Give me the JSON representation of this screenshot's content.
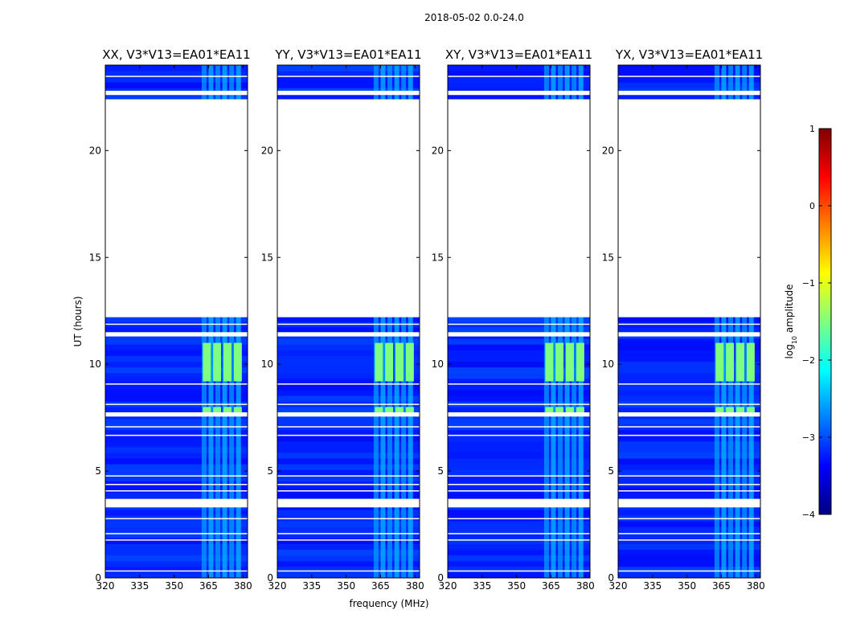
{
  "figure_title": "2018-05-02 0.0-24.0",
  "ylabel": "UT (hours)",
  "xlabel": "frequency (MHz)",
  "colorbar": {
    "label_prefix": "log",
    "label_sub": "10",
    "label_suffix": " amplitude",
    "range": [
      -4,
      1
    ],
    "ticks": [
      1,
      0,
      -1,
      -2,
      -3,
      -4
    ],
    "tick_labels": [
      "1",
      "0",
      "−1",
      "−2",
      "−3",
      "−4"
    ],
    "colors": [
      "#00007f",
      "#0000ff",
      "#007fff",
      "#00ffff",
      "#7fff7f",
      "#ffff00",
      "#ff7f00",
      "#ff0000",
      "#7f0000"
    ]
  },
  "chart_data": [
    {
      "type": "heatmap",
      "title": "XX, V3*V13=EA01*EA11",
      "xlim": [
        320,
        382
      ],
      "ylim": [
        0,
        24
      ],
      "xticks": [
        320,
        335,
        350,
        365,
        380
      ],
      "yticks": [
        0,
        5,
        10,
        15,
        20
      ],
      "background_log_amplitude": -3.2,
      "flagged_hours": [
        [
          12.2,
          22.4
        ],
        [
          22.6,
          22.8
        ],
        [
          7.55,
          7.75
        ],
        [
          3.3,
          3.7
        ],
        [
          11.3,
          11.5
        ]
      ],
      "rfi_band_mhz": [
        362,
        380
      ],
      "strong_rfi_hours": [
        [
          9.2,
          11.0
        ],
        [
          7.6,
          8.0
        ]
      ],
      "strong_rfi_log_amplitude": -1.5
    },
    {
      "type": "heatmap",
      "title": "YY, V3*V13=EA01*EA11",
      "xlim": [
        320,
        382
      ],
      "ylim": [
        0,
        24
      ],
      "xticks": [
        320,
        335,
        350,
        365,
        380
      ],
      "yticks": [
        0,
        5,
        10,
        15,
        20
      ],
      "background_log_amplitude": -3.2,
      "flagged_hours": [
        [
          12.2,
          22.4
        ],
        [
          22.6,
          22.8
        ],
        [
          7.55,
          7.75
        ],
        [
          3.3,
          3.7
        ],
        [
          11.3,
          11.5
        ]
      ],
      "rfi_band_mhz": [
        362,
        380
      ],
      "strong_rfi_hours": [
        [
          9.2,
          11.0
        ],
        [
          7.6,
          8.0
        ]
      ],
      "strong_rfi_log_amplitude": -1.5
    },
    {
      "type": "heatmap",
      "title": "XY, V3*V13=EA01*EA11",
      "xlim": [
        320,
        382
      ],
      "ylim": [
        0,
        24
      ],
      "xticks": [
        320,
        335,
        350,
        365,
        380
      ],
      "yticks": [
        0,
        5,
        10,
        15,
        20
      ],
      "background_log_amplitude": -3.2,
      "flagged_hours": [
        [
          12.2,
          22.4
        ],
        [
          22.6,
          22.8
        ],
        [
          7.55,
          7.75
        ],
        [
          3.3,
          3.7
        ],
        [
          11.3,
          11.5
        ]
      ],
      "rfi_band_mhz": [
        362,
        380
      ],
      "strong_rfi_hours": [
        [
          9.2,
          11.0
        ],
        [
          7.6,
          8.0
        ]
      ],
      "strong_rfi_log_amplitude": -1.5
    },
    {
      "type": "heatmap",
      "title": "YX, V3*V13=EA01*EA11",
      "xlim": [
        320,
        382
      ],
      "ylim": [
        0,
        24
      ],
      "xticks": [
        320,
        335,
        350,
        365,
        380
      ],
      "yticks": [
        0,
        5,
        10,
        15,
        20
      ],
      "background_log_amplitude": -3.2,
      "flagged_hours": [
        [
          12.2,
          22.4
        ],
        [
          22.6,
          22.8
        ],
        [
          7.55,
          7.75
        ],
        [
          3.3,
          3.7
        ],
        [
          11.3,
          11.5
        ]
      ],
      "rfi_band_mhz": [
        362,
        380
      ],
      "strong_rfi_hours": [
        [
          9.2,
          11.0
        ],
        [
          7.6,
          8.0
        ]
      ],
      "strong_rfi_log_amplitude": -1.5
    }
  ]
}
